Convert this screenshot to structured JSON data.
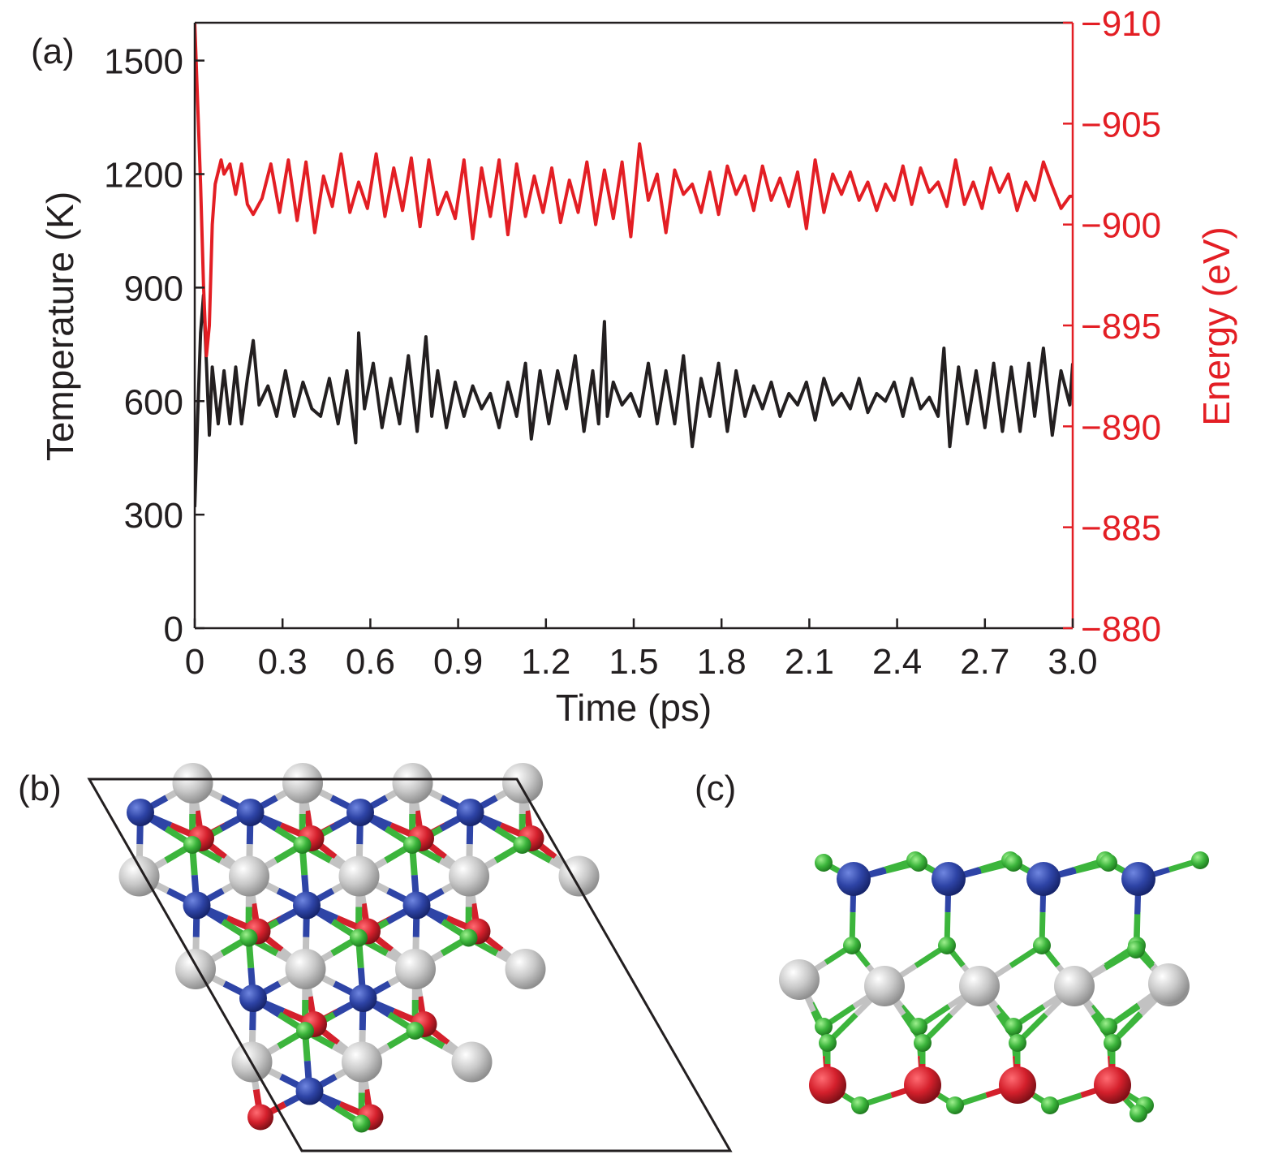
{
  "panels": {
    "a": "(a)",
    "b": "(b)",
    "c": "(c)"
  },
  "chart_data": {
    "type": "line",
    "xlabel": "Time (ps)",
    "ylabel_left": "Temperature (K)",
    "ylabel_right": "Energy (eV)",
    "xlim": [
      0,
      3.0
    ],
    "ylim_left": [
      0,
      1600
    ],
    "ylim_right": [
      -880,
      -910
    ],
    "x_ticks": [
      "0",
      "0.3",
      "0.6",
      "0.9",
      "1.2",
      "1.5",
      "1.8",
      "2.1",
      "2.4",
      "2.7",
      "3.0"
    ],
    "y_ticks_left": [
      "0",
      "300",
      "600",
      "900",
      "1200",
      "1500"
    ],
    "y_ticks_right": [
      "−880",
      "−885",
      "−890",
      "−895",
      "−900",
      "−905",
      "−910"
    ],
    "colors": {
      "temperature": "#231f20",
      "energy": "#e31e24",
      "axis_right": "#e31e24"
    },
    "series": [
      {
        "key": "temperature",
        "axis": "left",
        "x": [
          0,
          0.01,
          0.02,
          0.03,
          0.04,
          0.05,
          0.06,
          0.08,
          0.1,
          0.12,
          0.14,
          0.16,
          0.18,
          0.2,
          0.22,
          0.25,
          0.28,
          0.31,
          0.34,
          0.37,
          0.4,
          0.43,
          0.46,
          0.49,
          0.52,
          0.55,
          0.56,
          0.58,
          0.61,
          0.64,
          0.67,
          0.7,
          0.73,
          0.76,
          0.79,
          0.81,
          0.83,
          0.86,
          0.89,
          0.92,
          0.95,
          0.98,
          1.01,
          1.04,
          1.07,
          1.1,
          1.13,
          1.15,
          1.18,
          1.21,
          1.24,
          1.27,
          1.3,
          1.33,
          1.36,
          1.38,
          1.4,
          1.41,
          1.43,
          1.46,
          1.49,
          1.52,
          1.55,
          1.58,
          1.61,
          1.64,
          1.67,
          1.7,
          1.73,
          1.76,
          1.79,
          1.82,
          1.85,
          1.88,
          1.91,
          1.94,
          1.97,
          2.0,
          2.03,
          2.06,
          2.09,
          2.12,
          2.15,
          2.18,
          2.21,
          2.24,
          2.27,
          2.3,
          2.33,
          2.36,
          2.39,
          2.42,
          2.45,
          2.48,
          2.51,
          2.54,
          2.56,
          2.58,
          2.61,
          2.64,
          2.67,
          2.7,
          2.73,
          2.76,
          2.79,
          2.82,
          2.85,
          2.87,
          2.9,
          2.93,
          2.96,
          2.99,
          3.0
        ],
        "values": [
          320,
          560,
          780,
          880,
          700,
          510,
          690,
          540,
          680,
          540,
          690,
          540,
          660,
          760,
          590,
          640,
          560,
          680,
          560,
          650,
          580,
          560,
          660,
          540,
          680,
          490,
          780,
          580,
          700,
          530,
          660,
          540,
          720,
          520,
          770,
          560,
          680,
          530,
          650,
          560,
          640,
          580,
          620,
          530,
          650,
          560,
          700,
          500,
          680,
          540,
          680,
          580,
          720,
          520,
          680,
          540,
          810,
          560,
          650,
          590,
          620,
          560,
          700,
          540,
          680,
          540,
          720,
          480,
          660,
          560,
          700,
          520,
          680,
          560,
          640,
          580,
          650,
          560,
          620,
          590,
          650,
          550,
          660,
          590,
          620,
          580,
          660,
          570,
          620,
          600,
          650,
          560,
          660,
          580,
          610,
          560,
          740,
          480,
          690,
          540,
          680,
          530,
          700,
          520,
          690,
          520,
          700,
          560,
          740,
          510,
          680,
          590,
          700
        ]
      },
      {
        "key": "energy",
        "axis": "right",
        "x": [
          0,
          0.01,
          0.02,
          0.03,
          0.04,
          0.05,
          0.06,
          0.07,
          0.09,
          0.1,
          0.12,
          0.14,
          0.16,
          0.18,
          0.2,
          0.23,
          0.26,
          0.29,
          0.32,
          0.35,
          0.38,
          0.41,
          0.44,
          0.47,
          0.5,
          0.53,
          0.56,
          0.59,
          0.62,
          0.65,
          0.68,
          0.71,
          0.74,
          0.77,
          0.8,
          0.83,
          0.86,
          0.89,
          0.92,
          0.95,
          0.98,
          1.01,
          1.04,
          1.07,
          1.1,
          1.13,
          1.16,
          1.19,
          1.22,
          1.25,
          1.28,
          1.31,
          1.34,
          1.37,
          1.4,
          1.43,
          1.46,
          1.49,
          1.52,
          1.55,
          1.58,
          1.61,
          1.64,
          1.67,
          1.7,
          1.73,
          1.76,
          1.79,
          1.82,
          1.85,
          1.88,
          1.91,
          1.94,
          1.97,
          2.0,
          2.03,
          2.06,
          2.09,
          2.12,
          2.15,
          2.18,
          2.21,
          2.24,
          2.27,
          2.3,
          2.33,
          2.36,
          2.39,
          2.42,
          2.45,
          2.48,
          2.51,
          2.54,
          2.57,
          2.6,
          2.63,
          2.66,
          2.69,
          2.72,
          2.75,
          2.78,
          2.81,
          2.84,
          2.87,
          2.9,
          2.93,
          2.96,
          2.99,
          3.0
        ],
        "values": [
          -910,
          -906,
          -902,
          -897,
          -893.5,
          -895,
          -900,
          -902,
          -903.2,
          -902.5,
          -903,
          -901.5,
          -903,
          -901,
          -900.5,
          -901.3,
          -903,
          -900.6,
          -903.2,
          -900.2,
          -903.1,
          -899.6,
          -902.4,
          -900.9,
          -903.5,
          -900.6,
          -902.1,
          -900.8,
          -903.5,
          -900.4,
          -902.8,
          -900.7,
          -903.3,
          -899.9,
          -903.2,
          -900.5,
          -901.6,
          -900.3,
          -903.2,
          -899.3,
          -902.8,
          -900.4,
          -903.2,
          -899.5,
          -903,
          -900.4,
          -902.4,
          -900.6,
          -902.8,
          -900.1,
          -902.2,
          -900.6,
          -903.1,
          -900,
          -902.7,
          -900.3,
          -903.1,
          -899.4,
          -904,
          -901.2,
          -902.5,
          -899.6,
          -902.7,
          -901.5,
          -902,
          -900.6,
          -902.6,
          -900.5,
          -902.9,
          -901.5,
          -902.4,
          -900.7,
          -902.9,
          -901.2,
          -902.3,
          -900.9,
          -902.6,
          -899.8,
          -903.2,
          -900.6,
          -902.5,
          -901.5,
          -902.6,
          -901.2,
          -902.1,
          -900.7,
          -902,
          -901.2,
          -902.9,
          -901,
          -902.8,
          -901.6,
          -902.1,
          -900.9,
          -903.2,
          -901,
          -902.1,
          -900.8,
          -902.8,
          -901.6,
          -902.5,
          -900.7,
          -902.1,
          -901.2,
          -903.1,
          -901.9,
          -900.8,
          -901.4,
          -901.4
        ]
      }
    ]
  },
  "structure_b": {
    "atom_colors": {
      "gray": "#c2c2c2",
      "blue": "#2e44a6",
      "green": "#3cb53c",
      "red": "#d4202c"
    }
  },
  "structure_c": {
    "atom_colors": {
      "gray": "#c2c2c2",
      "blue": "#2e44a6",
      "green": "#3cb53c",
      "red": "#d4202c"
    }
  }
}
